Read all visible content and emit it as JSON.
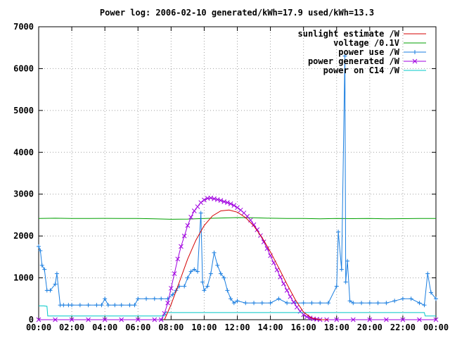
{
  "chart_data": {
    "type": "line",
    "title": "Power log: 2006-02-10 generated/kWh=17.9 used/kWh=13.3",
    "xlabel": "",
    "ylabel": "",
    "xlim": [
      0,
      24
    ],
    "ylim": [
      0,
      7000
    ],
    "grid": true,
    "legend_position": "top-right",
    "x_ticks": [
      0,
      2,
      4,
      6,
      8,
      10,
      12,
      14,
      16,
      18,
      20,
      22,
      24
    ],
    "x_tick_labels": [
      "00:00",
      "02:00",
      "04:00",
      "06:00",
      "08:00",
      "10:00",
      "12:00",
      "14:00",
      "16:00",
      "18:00",
      "20:00",
      "22:00",
      "00:00"
    ],
    "y_ticks": [
      0,
      1000,
      2000,
      3000,
      4000,
      5000,
      6000,
      7000
    ],
    "y_tick_labels": [
      "0",
      "1000",
      "2000",
      "3000",
      "4000",
      "5000",
      "6000",
      "7000"
    ],
    "series": [
      {
        "name": "sunlight estimate /W",
        "color": "#d40000",
        "marker": "none",
        "x": [
          7.6,
          8.0,
          8.5,
          9.0,
          9.5,
          10.0,
          10.5,
          11.0,
          11.5,
          12.0,
          12.5,
          13.0,
          13.5,
          14.0,
          14.5,
          15.0,
          15.5,
          16.0,
          16.5,
          17.0,
          17.5
        ],
        "y": [
          0,
          360,
          900,
          1450,
          1900,
          2250,
          2480,
          2600,
          2620,
          2570,
          2440,
          2240,
          1960,
          1620,
          1240,
          850,
          480,
          180,
          40,
          0,
          0
        ]
      },
      {
        "name": "voltage /0.1V",
        "color": "#00a000",
        "marker": "none",
        "x": [
          0,
          1,
          2,
          3,
          4,
          5,
          6,
          7,
          8,
          9,
          10,
          11,
          12,
          13,
          14,
          15,
          16,
          17,
          18,
          19,
          20,
          21,
          22,
          23,
          24
        ],
        "y": [
          2420,
          2425,
          2420,
          2418,
          2422,
          2420,
          2418,
          2410,
          2400,
          2405,
          2420,
          2430,
          2440,
          2435,
          2425,
          2420,
          2420,
          2410,
          2420,
          2415,
          2420,
          2410,
          2415,
          2420,
          2420
        ]
      },
      {
        "name": "power use /W",
        "color": "#1a7ee0",
        "marker": "plus",
        "x": [
          0.0,
          0.1,
          0.2,
          0.35,
          0.5,
          0.7,
          1.0,
          1.1,
          1.3,
          1.5,
          1.8,
          2.0,
          2.5,
          3.0,
          3.5,
          3.8,
          4.0,
          4.2,
          4.6,
          5.0,
          5.5,
          5.8,
          6.0,
          6.5,
          7.0,
          7.4,
          7.8,
          8.1,
          8.3,
          8.5,
          8.8,
          9.0,
          9.2,
          9.4,
          9.6,
          9.8,
          9.9,
          10.0,
          10.2,
          10.4,
          10.6,
          10.8,
          11.0,
          11.2,
          11.4,
          11.6,
          11.8,
          12.0,
          12.5,
          13.0,
          13.5,
          14.0,
          14.5,
          15.0,
          15.5,
          16.0,
          16.5,
          17.0,
          17.5,
          18.0,
          18.1,
          18.3,
          18.5,
          18.55,
          18.65,
          18.8,
          19.0,
          19.5,
          20.0,
          20.5,
          21.0,
          21.5,
          22.0,
          22.5,
          23.0,
          23.3,
          23.5,
          23.7,
          24.0
        ],
        "y": [
          1750,
          1650,
          1300,
          1200,
          700,
          700,
          850,
          1100,
          350,
          350,
          350,
          350,
          350,
          350,
          350,
          350,
          500,
          350,
          350,
          350,
          350,
          350,
          500,
          500,
          500,
          500,
          500,
          600,
          700,
          800,
          800,
          1000,
          1150,
          1200,
          1150,
          2550,
          900,
          700,
          800,
          1100,
          1600,
          1300,
          1100,
          1000,
          700,
          500,
          400,
          450,
          400,
          400,
          400,
          400,
          500,
          400,
          400,
          400,
          400,
          400,
          400,
          800,
          2100,
          1200,
          6300,
          900,
          1400,
          450,
          400,
          400,
          400,
          400,
          400,
          450,
          500,
          500,
          400,
          350,
          1100,
          650,
          500
        ]
      },
      {
        "name": "power generated /W",
        "color": "#a000e0",
        "marker": "cross",
        "x": [
          0,
          1,
          2,
          3,
          4,
          5,
          6,
          7,
          7.4,
          7.6,
          7.8,
          8.0,
          8.2,
          8.4,
          8.6,
          8.8,
          9.0,
          9.2,
          9.4,
          9.6,
          9.8,
          10.0,
          10.2,
          10.4,
          10.6,
          10.8,
          11.0,
          11.2,
          11.4,
          11.6,
          11.8,
          12.0,
          12.2,
          12.4,
          12.6,
          12.8,
          13.0,
          13.2,
          13.4,
          13.6,
          13.8,
          14.0,
          14.2,
          14.4,
          14.6,
          14.8,
          15.0,
          15.2,
          15.4,
          15.6,
          15.8,
          16.0,
          16.2,
          16.4,
          16.6,
          16.8,
          17.0,
          17.4,
          18.0,
          19.0,
          20.0,
          21.0,
          22.0,
          23.0,
          24.0
        ],
        "y": [
          0,
          0,
          0,
          0,
          0,
          0,
          0,
          0,
          0,
          150,
          400,
          750,
          1100,
          1450,
          1750,
          2000,
          2250,
          2450,
          2600,
          2700,
          2800,
          2860,
          2900,
          2910,
          2890,
          2870,
          2850,
          2820,
          2800,
          2770,
          2730,
          2680,
          2620,
          2550,
          2470,
          2380,
          2270,
          2150,
          2010,
          1860,
          1700,
          1530,
          1360,
          1190,
          1020,
          860,
          700,
          550,
          420,
          300,
          200,
          120,
          70,
          40,
          20,
          10,
          0,
          0,
          0,
          0,
          0,
          0,
          0,
          0,
          0
        ]
      },
      {
        "name": "power on C14 /W",
        "color": "#00c8c8",
        "marker": "none",
        "x": [
          0,
          0.3,
          0.5,
          0.55,
          1,
          2,
          3,
          4,
          5,
          6,
          7,
          7.6,
          7.65,
          8,
          9,
          10,
          11,
          12,
          13,
          14,
          15,
          16,
          17,
          18,
          19,
          20,
          21,
          22,
          23,
          23.3,
          23.35,
          24
        ],
        "y": [
          330,
          330,
          320,
          90,
          90,
          90,
          90,
          90,
          90,
          90,
          90,
          90,
          170,
          170,
          170,
          170,
          170,
          170,
          170,
          170,
          170,
          170,
          170,
          170,
          170,
          170,
          170,
          170,
          170,
          170,
          90,
          90
        ]
      }
    ]
  }
}
